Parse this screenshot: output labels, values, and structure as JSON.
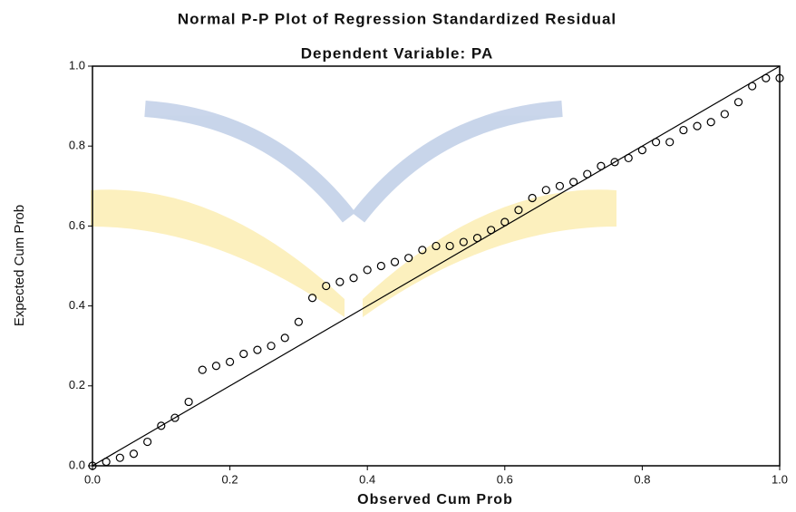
{
  "chart_data": {
    "type": "scatter",
    "title": "Normal P-P Plot of Regression Standardized Residual",
    "subtitle": "Dependent Variable: PA",
    "x_label": "Observed Cum Prob",
    "y_label": "Expected Cum Prob",
    "x": [
      0.0,
      0.02,
      0.04,
      0.06,
      0.08,
      0.1,
      0.12,
      0.14,
      0.16,
      0.18,
      0.2,
      0.22,
      0.24,
      0.26,
      0.28,
      0.3,
      0.32,
      0.34,
      0.36,
      0.38,
      0.4,
      0.42,
      0.44,
      0.46,
      0.48,
      0.5,
      0.52,
      0.54,
      0.56,
      0.58,
      0.6,
      0.62,
      0.64,
      0.66,
      0.68,
      0.7,
      0.72,
      0.74,
      0.76,
      0.78,
      0.8,
      0.82,
      0.84,
      0.86,
      0.88,
      0.9,
      0.92,
      0.94,
      0.96,
      0.98,
      1.0
    ],
    "series": [
      {
        "color": "#000000",
        "values": [
          0.0,
          0.01,
          0.02,
          0.03,
          0.06,
          0.1,
          0.12,
          0.16,
          0.24,
          0.25,
          0.26,
          0.28,
          0.29,
          0.3,
          0.32,
          0.36,
          0.42,
          0.45,
          0.46,
          0.47,
          0.49,
          0.5,
          0.51,
          0.52,
          0.54,
          0.55,
          0.55,
          0.56,
          0.57,
          0.59,
          0.61,
          0.64,
          0.67,
          0.69,
          0.7,
          0.71,
          0.73,
          0.75,
          0.76,
          0.77,
          0.79,
          0.81,
          0.81,
          0.84,
          0.85,
          0.86,
          0.88,
          0.91,
          0.95,
          0.97,
          0.97
        ]
      }
    ],
    "diagonal": true,
    "xlim": [
      0,
      1
    ],
    "ylim": [
      0,
      1
    ],
    "xticks": [
      {
        "value": 0,
        "label": "0.0"
      },
      0.2,
      0.4,
      0.6,
      0.8,
      {
        "value": 1,
        "label": "1.0"
      }
    ],
    "yticks": [
      {
        "value": 0,
        "label": "0.0"
      },
      0.2,
      0.4,
      0.6,
      0.8,
      {
        "value": 1,
        "label": "1.0"
      }
    ]
  }
}
